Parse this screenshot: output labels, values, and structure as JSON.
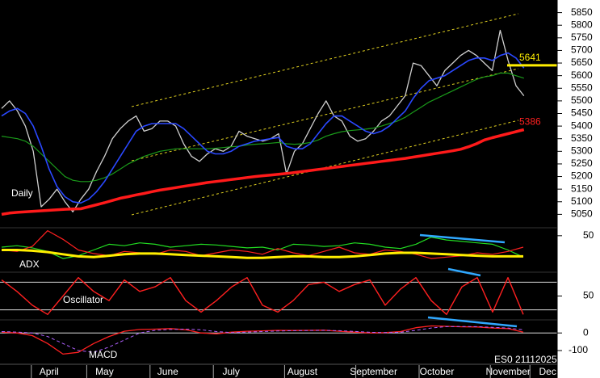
{
  "chart_data": [
    {
      "type": "line",
      "label": "Daily",
      "categories": [
        null,
        null,
        null,
        null,
        null,
        null,
        "April",
        null,
        null,
        null,
        null,
        null,
        null,
        "May",
        null,
        null,
        null,
        null,
        null,
        null,
        null,
        "June",
        null,
        null,
        null,
        null,
        null,
        null,
        null,
        "July",
        null,
        null,
        null,
        null,
        null,
        null,
        null,
        null,
        "August",
        null,
        null,
        null,
        null,
        null,
        null,
        null,
        null,
        "September",
        null,
        null,
        null,
        null,
        null,
        null,
        null,
        "October",
        null,
        null,
        null,
        null,
        null,
        null,
        null,
        null,
        "November",
        null,
        null,
        null,
        null,
        "Dec"
      ],
      "ylim": [
        5000,
        5900
      ],
      "yticks": [
        5050,
        5100,
        5150,
        5200,
        5250,
        5300,
        5350,
        5400,
        5450,
        5500,
        5550,
        5600,
        5650,
        5700,
        5750,
        5800,
        5850
      ],
      "series": [
        {
          "color": "#cfcfcf",
          "width": 1.3,
          "values": [
            5470,
            5500,
            5460,
            5400,
            5300,
            5080,
            5110,
            5150,
            5100,
            5060,
            5110,
            5150,
            5220,
            5280,
            5350,
            5390,
            5420,
            5440,
            5380,
            5390,
            5420,
            5420,
            5400,
            5330,
            5280,
            5260,
            5290,
            5310,
            5300,
            5320,
            5380,
            5360,
            5350,
            5340,
            5350,
            5370,
            5210,
            5300,
            5330,
            5390,
            5450,
            5500,
            5440,
            5420,
            5360,
            5340,
            5350,
            5380,
            5420,
            5440,
            5480,
            5520,
            5650,
            5640,
            5600,
            5560,
            5620,
            5650,
            5680,
            5700,
            5680,
            5650,
            5620,
            5780,
            5660,
            5560,
            5520,
            null,
            null,
            null
          ]
        },
        {
          "color": "#1a9a1a",
          "width": 1.2,
          "values": [
            5360,
            5355,
            5350,
            5340,
            5320,
            5290,
            5260,
            5230,
            5200,
            5185,
            5180,
            5180,
            5185,
            5195,
            5210,
            5230,
            5250,
            5265,
            5280,
            5290,
            5300,
            5305,
            5310,
            5310,
            5310,
            5310,
            5310,
            5312,
            5315,
            5318,
            5320,
            5325,
            5328,
            5330,
            5332,
            5335,
            5330,
            5328,
            5330,
            5335,
            5345,
            5360,
            5370,
            5378,
            5382,
            5385,
            5388,
            5392,
            5400,
            5410,
            5420,
            5435,
            5455,
            5475,
            5495,
            5510,
            5525,
            5540,
            5555,
            5570,
            5585,
            5595,
            5600,
            5610,
            5610,
            5600,
            5590,
            null,
            null,
            null
          ]
        },
        {
          "color": "#2a48ff",
          "width": 1.6,
          "values": [
            5440,
            5460,
            5470,
            5450,
            5400,
            5320,
            5230,
            5160,
            5120,
            5100,
            5095,
            5110,
            5140,
            5180,
            5230,
            5280,
            5330,
            5380,
            5400,
            5410,
            5410,
            5410,
            5410,
            5390,
            5360,
            5330,
            5300,
            5290,
            5290,
            5300,
            5320,
            5330,
            5340,
            5345,
            5350,
            5355,
            5320,
            5310,
            5310,
            5330,
            5370,
            5410,
            5440,
            5440,
            5420,
            5400,
            5380,
            5370,
            5380,
            5400,
            5430,
            5460,
            5510,
            5550,
            5580,
            5590,
            5600,
            5620,
            5640,
            5660,
            5670,
            5670,
            5660,
            5680,
            5690,
            5670,
            5630,
            null,
            null,
            null
          ]
        },
        {
          "color": "#ff1a1a",
          "width": 3.5,
          "values": [
            5050,
            5055,
            5058,
            5060,
            5062,
            5064,
            5066,
            5068,
            5070,
            5071,
            5072,
            5080,
            5088,
            5096,
            5105,
            5114,
            5120,
            5127,
            5133,
            5140,
            5146,
            5151,
            5156,
            5161,
            5166,
            5171,
            5176,
            5180,
            5184,
            5188,
            5192,
            5196,
            5200,
            5203,
            5206,
            5209,
            5212,
            5216,
            5220,
            5224,
            5228,
            5232,
            5236,
            5240,
            5244,
            5248,
            5252,
            5256,
            5260,
            5264,
            5268,
            5272,
            5277,
            5282,
            5287,
            5292,
            5297,
            5302,
            5308,
            5318,
            5330,
            5345,
            5354,
            5362,
            5370,
            5378,
            5386,
            null,
            null,
            null
          ]
        }
      ],
      "levels": [
        {
          "value": 5641,
          "color": "#ffee00",
          "line": true
        },
        {
          "value": 5386,
          "color": "#ff2020",
          "line": false
        }
      ]
    },
    {
      "type": "line",
      "label": "ADX",
      "ylim": [
        0,
        60
      ],
      "yticks": [
        50
      ],
      "series": [
        {
          "color": "#22dd22",
          "width": 1.2,
          "values": [
            34,
            36,
            33,
            28,
            18,
            22,
            30,
            38,
            36,
            40,
            38,
            34,
            36,
            38,
            37,
            35,
            33,
            34,
            30,
            38,
            37,
            35,
            36,
            40,
            38,
            34,
            32,
            38,
            48,
            44,
            42,
            40,
            38,
            30,
            20
          ]
        },
        {
          "color": "#ff2020",
          "width": 1.2,
          "values": [
            30,
            28,
            35,
            57,
            45,
            30,
            25,
            22,
            28,
            26,
            24,
            30,
            28,
            22,
            26,
            30,
            28,
            24,
            32,
            26,
            22,
            28,
            34,
            26,
            24,
            30,
            28,
            24,
            18,
            20,
            22,
            26,
            24,
            28,
            34
          ]
        },
        {
          "color": "#ffee00",
          "width": 3,
          "values": [
            30,
            30,
            29,
            27,
            24,
            21,
            20,
            22,
            24,
            25,
            25,
            24,
            23,
            22,
            21,
            20,
            19,
            19,
            20,
            21,
            21,
            20,
            20,
            21,
            23,
            25,
            26,
            26,
            25,
            24,
            23,
            22,
            21,
            21,
            21
          ]
        }
      ]
    },
    {
      "type": "line",
      "label": "Oscillator",
      "ylim": [
        0,
        100
      ],
      "yticks": [
        50
      ],
      "reference_lines": [
        80,
        20
      ],
      "series": [
        {
          "color": "#ff2020",
          "width": 1.4,
          "values": [
            85,
            60,
            30,
            10,
            50,
            90,
            60,
            40,
            85,
            60,
            70,
            90,
            40,
            15,
            40,
            70,
            90,
            30,
            15,
            40,
            75,
            80,
            60,
            75,
            85,
            30,
            65,
            90,
            40,
            10,
            70,
            90,
            15,
            90,
            10
          ]
        }
      ]
    },
    {
      "type": "line",
      "label": "MACD",
      "note": "ES0 21112025",
      "ylim": [
        -155,
        70
      ],
      "yticks": [
        -100,
        0
      ],
      "reference_lines": [
        0
      ],
      "series": [
        {
          "color": "#ff2020",
          "width": 1.3,
          "values": [
            5,
            0,
            -15,
            -60,
            -120,
            -110,
            -60,
            -20,
            10,
            20,
            22,
            25,
            18,
            0,
            -5,
            5,
            10,
            12,
            15,
            14,
            15,
            16,
            10,
            5,
            0,
            2,
            8,
            30,
            40,
            38,
            35,
            34,
            28,
            25,
            5
          ]
        },
        {
          "color": "#b060ff",
          "width": 1,
          "dash": true,
          "values": [
            8,
            5,
            0,
            -20,
            -60,
            -100,
            -110,
            -80,
            -40,
            0,
            15,
            20,
            22,
            18,
            8,
            2,
            5,
            8,
            11,
            13,
            14,
            15,
            13,
            9,
            4,
            2,
            4,
            15,
            28,
            36,
            37,
            36,
            32,
            28,
            18
          ]
        }
      ]
    }
  ]
}
